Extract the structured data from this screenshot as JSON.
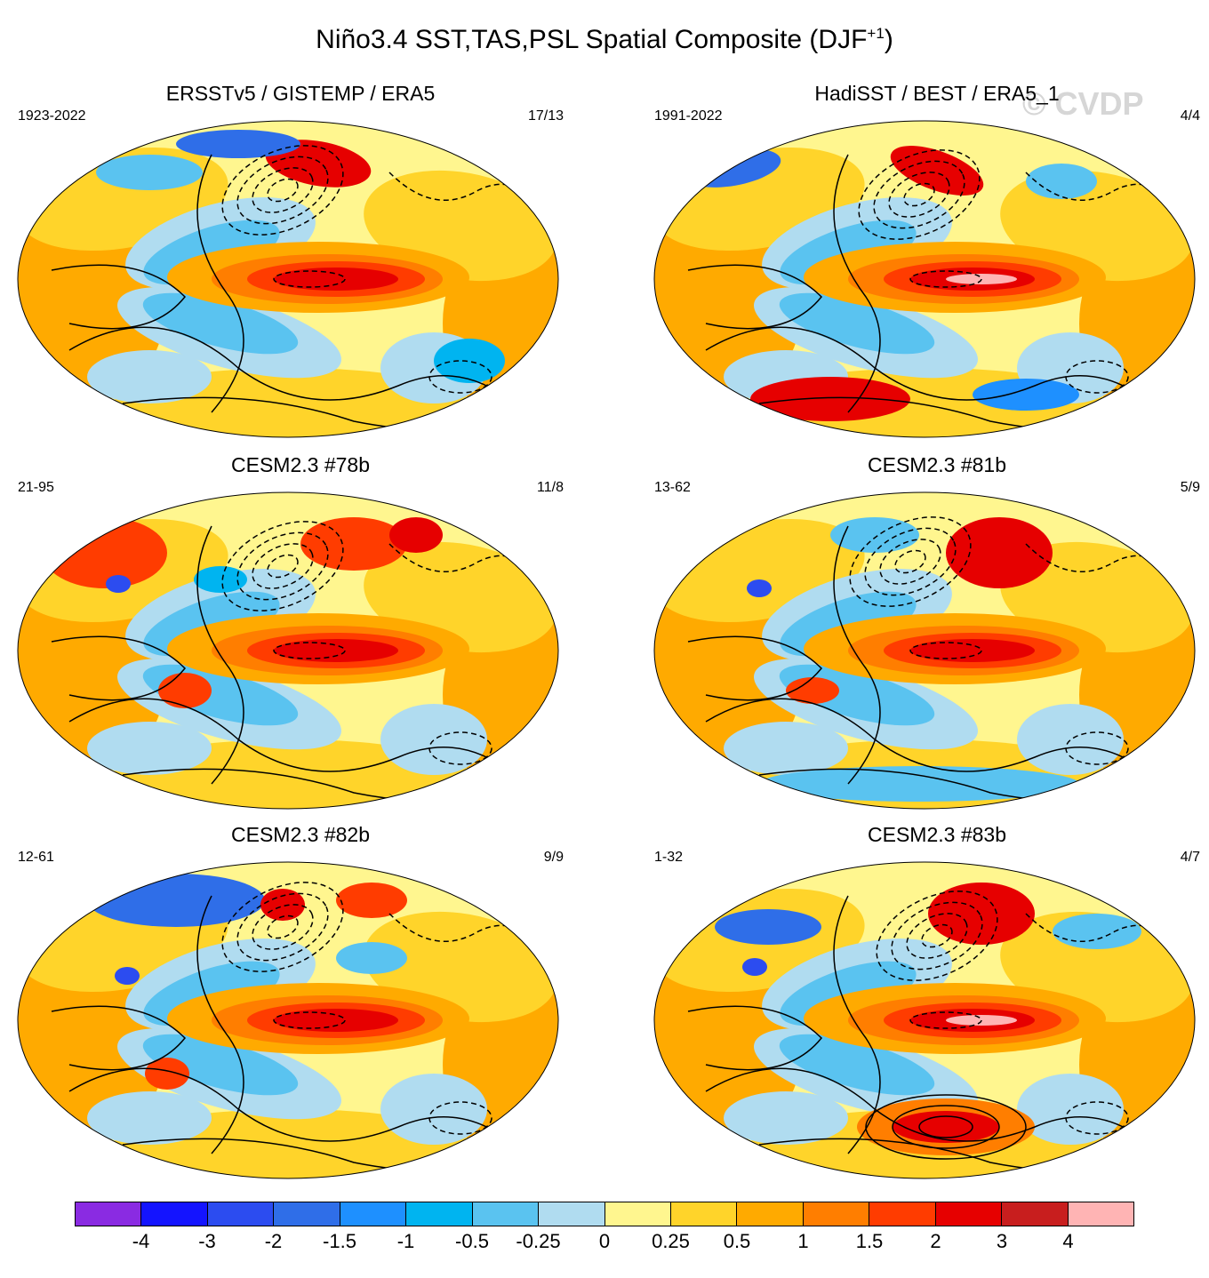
{
  "title": {
    "main": "Niño3.4 SST,TAS,PSL Spatial Composite (DJF",
    "superscript": "+1",
    "close": ")"
  },
  "watermark": "© CVDP",
  "panels": [
    {
      "title": "ERSSTv5 / GISTEMP / ERA5",
      "years": "1923-2022",
      "count": "17/13",
      "variant": 0
    },
    {
      "title": "HadiSST / BEST / ERA5_1",
      "years": "1991-2022",
      "count": "4/4",
      "variant": 1
    },
    {
      "title": "CESM2.3 #78b",
      "years": "21-95",
      "count": "11/8",
      "variant": 2
    },
    {
      "title": "CESM2.3 #81b",
      "years": "13-62",
      "count": "5/9",
      "variant": 3
    },
    {
      "title": "CESM2.3 #82b",
      "years": "12-61",
      "count": "9/9",
      "variant": 4
    },
    {
      "title": "CESM2.3 #83b",
      "years": "1-32",
      "count": "4/7",
      "variant": 5
    }
  ],
  "colorbar": {
    "colors": [
      "#8a2be2",
      "#1414ff",
      "#2c4cf0",
      "#2f6ee8",
      "#1e90ff",
      "#00b4f0",
      "#5ac3f0",
      "#b0dcf0",
      "#fff68f",
      "#ffd42a",
      "#ffaa00",
      "#ff7e00",
      "#ff3c00",
      "#e60000",
      "#c81e1e",
      "#ffb4b4"
    ],
    "labels": [
      "-4",
      "-3",
      "-2",
      "-1.5",
      "-1",
      "-0.5",
      "-0.25",
      "0",
      "0.25",
      "0.5",
      "1",
      "1.5",
      "2",
      "3",
      "4"
    ]
  }
}
